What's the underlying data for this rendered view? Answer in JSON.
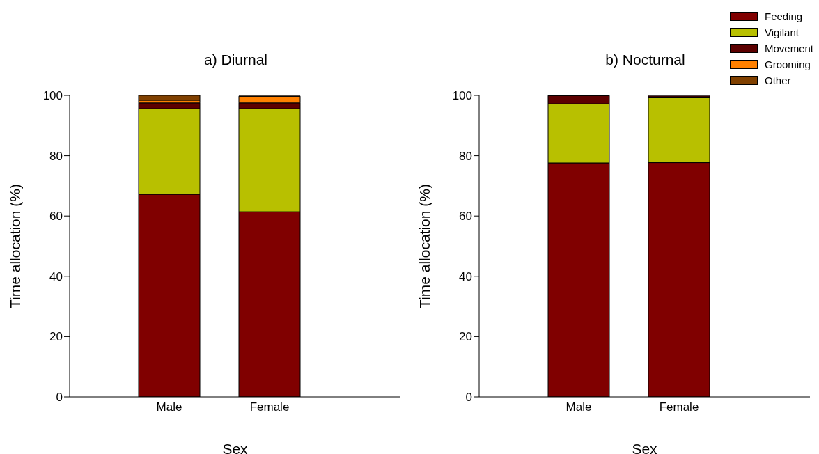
{
  "chart_data": [
    {
      "type": "bar",
      "title": "a) Diurnal",
      "xlabel": "Sex",
      "ylabel": "Time allocation (%)",
      "categories": [
        "Male",
        "Female"
      ],
      "stacked": true,
      "ylim": [
        0,
        100
      ],
      "yticks": [
        0,
        20,
        40,
        60,
        80,
        100
      ],
      "grid": false,
      "series": [
        {
          "color": "#800000",
          "values": [
            67.2,
            61.4
          ]
        },
        {
          "color": "#b8c000",
          "values": [
            28.4,
            34.2
          ]
        },
        {
          "color": "#5c0000",
          "values": [
            1.9,
            1.9
          ]
        },
        {
          "color": "#ff8000",
          "values": [
            0.9,
            2.1
          ]
        },
        {
          "color": "#804000",
          "values": [
            1.6,
            0.2
          ]
        }
      ]
    },
    {
      "type": "bar",
      "title": "b) Nocturnal",
      "xlabel": "Sex",
      "ylabel": "Time allocation (%)",
      "categories": [
        "Male",
        "Female"
      ],
      "stacked": true,
      "ylim": [
        0,
        100
      ],
      "yticks": [
        0,
        20,
        40,
        60,
        80,
        100
      ],
      "grid": false,
      "legend": "top right",
      "series": [
        {
          "name": "Feeding",
          "color": "#800000",
          "values": [
            77.6,
            77.7
          ]
        },
        {
          "name": "Vigilant",
          "color": "#b8c000",
          "values": [
            19.6,
            21.5
          ]
        },
        {
          "name": "Movement",
          "color": "#5c0000",
          "values": [
            2.7,
            0.6
          ]
        },
        {
          "name": "Grooming",
          "color": "#ff8000",
          "values": [
            0,
            0
          ]
        },
        {
          "name": "Other",
          "color": "#804000",
          "values": [
            0.1,
            0
          ]
        }
      ]
    }
  ]
}
